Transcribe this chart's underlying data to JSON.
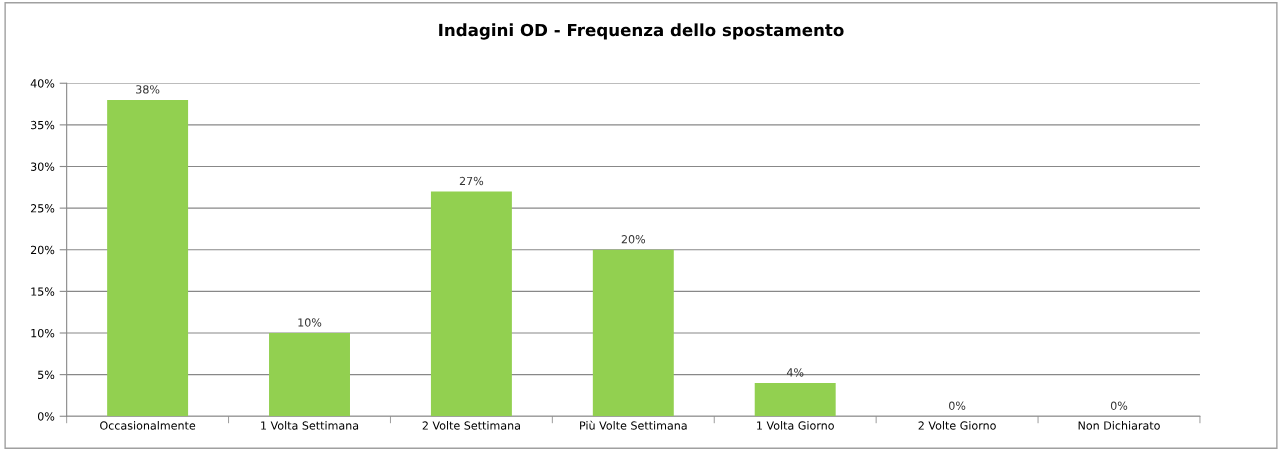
{
  "chart_data": {
    "type": "bar",
    "title": "Indagini OD - Frequenza dello spostamento",
    "categories": [
      "Occasionalmente",
      "1 Volta Settimana",
      "2 Volte Settimana",
      "Più Volte Settimana",
      "1 Volta Giorno",
      "2 Volte Giorno",
      "Non Dichiarato"
    ],
    "values": [
      38,
      10,
      27,
      20,
      4,
      0,
      0
    ],
    "value_labels": [
      "38%",
      "10%",
      "27%",
      "20%",
      "4%",
      "0%",
      "0%"
    ],
    "color": "#92d050",
    "ylim": [
      0,
      40
    ],
    "yticks": [
      {
        "value": 0,
        "label": "0%"
      },
      {
        "value": 5,
        "label": "5%"
      },
      {
        "value": 10,
        "label": "10%"
      },
      {
        "value": 15,
        "label": "15%"
      },
      {
        "value": 20,
        "label": "20%"
      },
      {
        "value": 25,
        "label": "25%"
      },
      {
        "value": 30,
        "label": "30%"
      },
      {
        "value": 35,
        "label": "35%"
      },
      {
        "value": 40,
        "label": "40%"
      }
    ],
    "grid": "y",
    "legend": false
  }
}
